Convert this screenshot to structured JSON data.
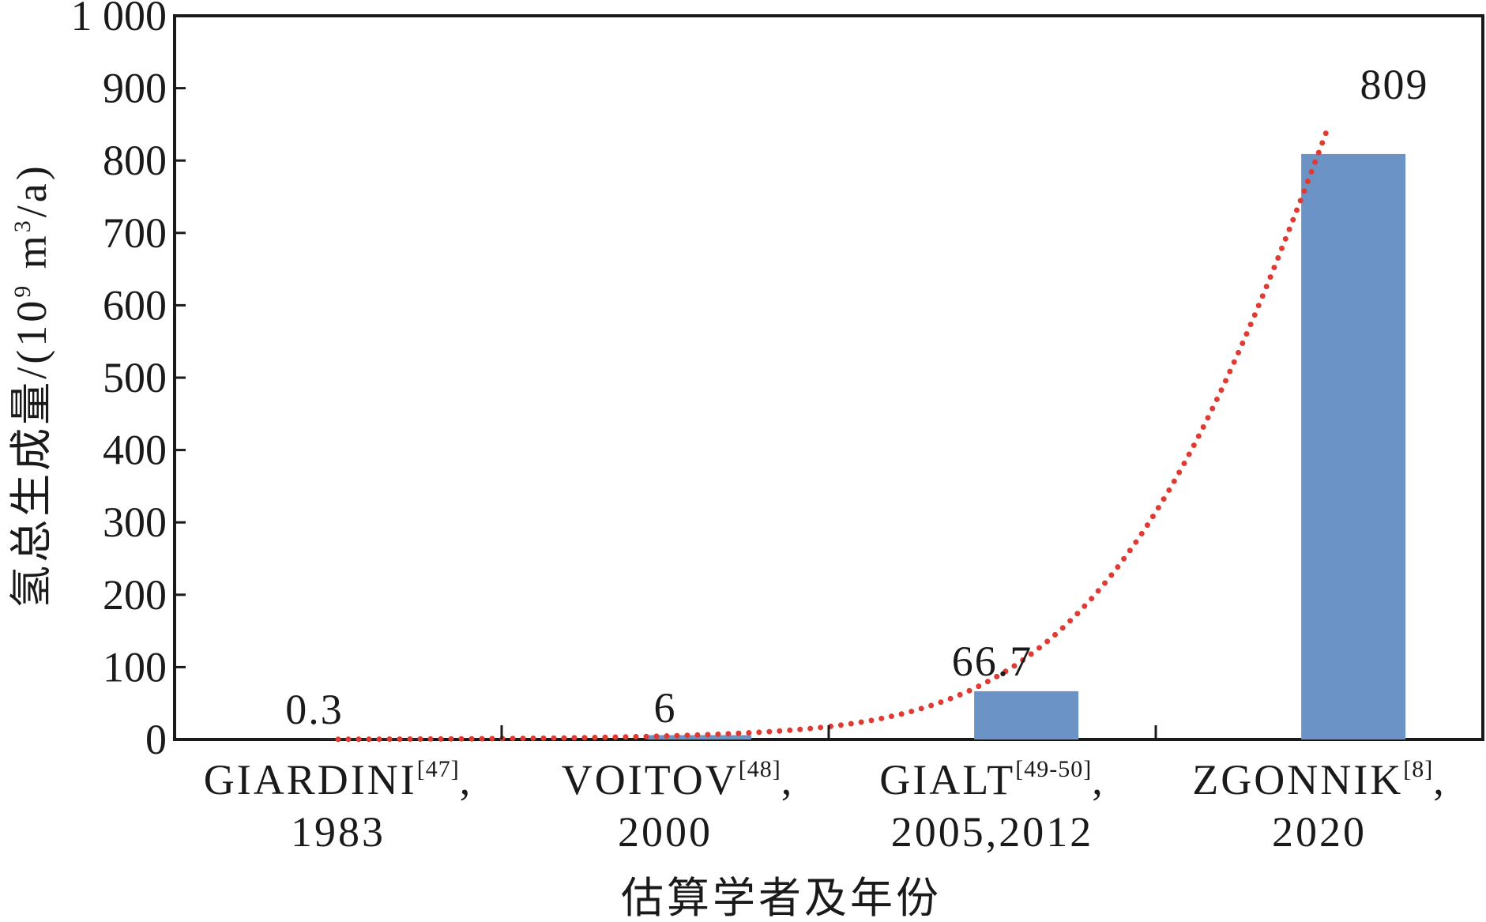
{
  "chart_data": {
    "type": "bar",
    "title": "",
    "xlabel": "估算学者及年份",
    "ylabel": "氢总生成量/(10⁹ m³/a)",
    "ylabel_parts": {
      "main": "氢总生成量/(10",
      "exp1": "9",
      "mid": " m",
      "exp2": "3",
      "end": "/a)"
    },
    "ylim": [
      0,
      1000
    ],
    "yticks": [
      0,
      100,
      200,
      300,
      400,
      500,
      600,
      700,
      800,
      900,
      1000
    ],
    "ytick_labels": [
      "0",
      "100",
      "200",
      "300",
      "400",
      "500",
      "600",
      "700",
      "800",
      "900",
      "1 000"
    ],
    "categories": [
      {
        "name": "GIARDINI",
        "ref": "[47]",
        "sep": ",",
        "year": "1983"
      },
      {
        "name": "VOITOV",
        "ref": "[48]",
        "sep": ",",
        "year": "2000"
      },
      {
        "name": "GIALT",
        "ref": "[49-50]",
        "sep": ",",
        "year": "2005,2012"
      },
      {
        "name": "ZGONNIK",
        "ref": "[8]",
        "sep": ",",
        "year": "2020"
      }
    ],
    "values": [
      0.3,
      6,
      66.7,
      809
    ],
    "data_labels": [
      "0.3",
      "6",
      "66.7",
      "809"
    ],
    "bar_color": "#6b93c5",
    "trendline": {
      "style": "dotted",
      "color": "#e03a32",
      "type": "exponential fit"
    },
    "grid": false,
    "legend": false
  }
}
